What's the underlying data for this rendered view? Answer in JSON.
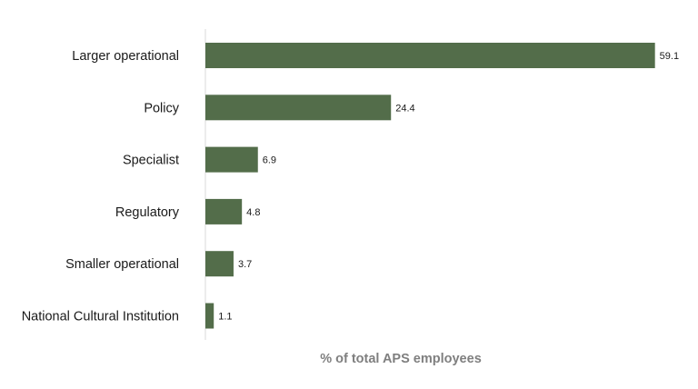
{
  "chart_data": {
    "type": "bar",
    "orientation": "horizontal",
    "categories": [
      "Larger operational",
      "Policy",
      "Specialist",
      "Regulatory",
      "Smaller operational",
      "National Cultural Institution"
    ],
    "values": [
      59.1,
      24.4,
      6.9,
      4.8,
      3.7,
      1.1
    ],
    "value_labels": [
      "59.1",
      "24.4",
      "6.9",
      "4.8",
      "3.7",
      "1.1"
    ],
    "title": "",
    "xlabel": "% of total APS employees",
    "ylabel": "",
    "xlim": [
      0,
      65
    ],
    "grid": false,
    "legend": "none",
    "bar_color": "#536d4a",
    "axis_color": "#d9d9d9",
    "axis_title_color": "#7f7f7f"
  }
}
